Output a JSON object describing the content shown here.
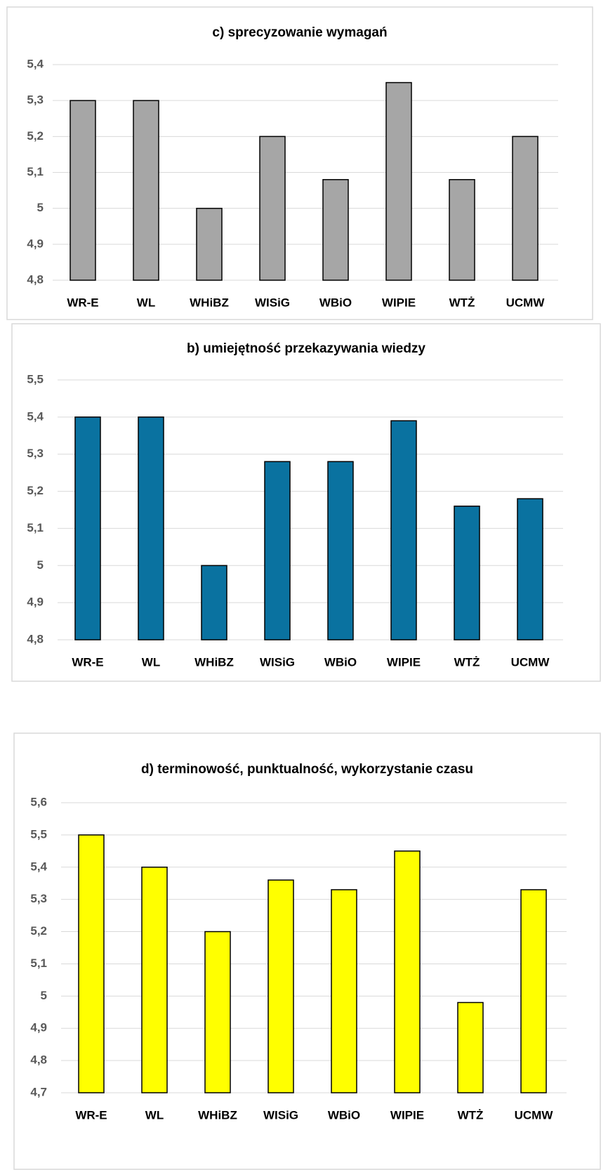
{
  "chart_data": [
    {
      "type": "bar",
      "title": "c) sprecyzowanie wymagań",
      "categories": [
        "WR-E",
        "WL",
        "WHiBZ",
        "WISiG",
        "WBiO",
        "WIPIE",
        "WTŻ",
        "UCMW"
      ],
      "values": [
        5.3,
        5.3,
        5.0,
        5.2,
        5.08,
        5.35,
        5.08,
        5.2
      ],
      "color": "#a6a6a6",
      "ylim": [
        4.8,
        5.4
      ],
      "yticks": [
        {
          "value": 4.8,
          "label": "4,8"
        },
        {
          "value": 4.9,
          "label": "4,9"
        },
        5,
        {
          "value": 5.1,
          "label": "5,1"
        },
        {
          "value": 5.2,
          "label": "5,2"
        },
        {
          "value": 5.3,
          "label": "5,3"
        },
        {
          "value": 5.4,
          "label": "5,4"
        }
      ],
      "grid": true
    },
    {
      "type": "bar",
      "title": "b) umiejętność przekazywania wiedzy",
      "categories": [
        "WR-E",
        "WL",
        "WHiBZ",
        "WISiG",
        "WBiO",
        "WIPIE",
        "WTŻ",
        "UCMW"
      ],
      "values": [
        5.4,
        5.4,
        5.0,
        5.28,
        5.28,
        5.39,
        5.16,
        5.18
      ],
      "color": "#0a72a0",
      "ylim": [
        4.8,
        5.5
      ],
      "yticks": [
        {
          "value": 4.8,
          "label": "4,8"
        },
        {
          "value": 4.9,
          "label": "4,9"
        },
        5,
        {
          "value": 5.1,
          "label": "5,1"
        },
        {
          "value": 5.2,
          "label": "5,2"
        },
        {
          "value": 5.3,
          "label": "5,3"
        },
        {
          "value": 5.4,
          "label": "5,4"
        },
        {
          "value": 5.5,
          "label": "5,5"
        }
      ],
      "grid": true
    },
    {
      "type": "bar",
      "title": "d) terminowość, punktualność, wykorzystanie czasu",
      "categories": [
        "WR-E",
        "WL",
        "WHiBZ",
        "WISiG",
        "WBiO",
        "WIPIE",
        "WTŻ",
        "UCMW"
      ],
      "values": [
        5.5,
        5.4,
        5.2,
        5.36,
        5.33,
        5.45,
        4.98,
        5.33
      ],
      "color": "#ffff00",
      "ylim": [
        4.7,
        5.6
      ],
      "yticks": [
        {
          "value": 4.7,
          "label": "4,7"
        },
        {
          "value": 4.8,
          "label": "4,8"
        },
        {
          "value": 4.9,
          "label": "4,9"
        },
        5,
        {
          "value": 5.1,
          "label": "5,1"
        },
        {
          "value": 5.2,
          "label": "5,2"
        },
        {
          "value": 5.3,
          "label": "5,3"
        },
        {
          "value": 5.4,
          "label": "5,4"
        },
        {
          "value": 5.5,
          "label": "5,5"
        },
        {
          "value": 5.6,
          "label": "5,6"
        }
      ],
      "grid": true
    }
  ]
}
